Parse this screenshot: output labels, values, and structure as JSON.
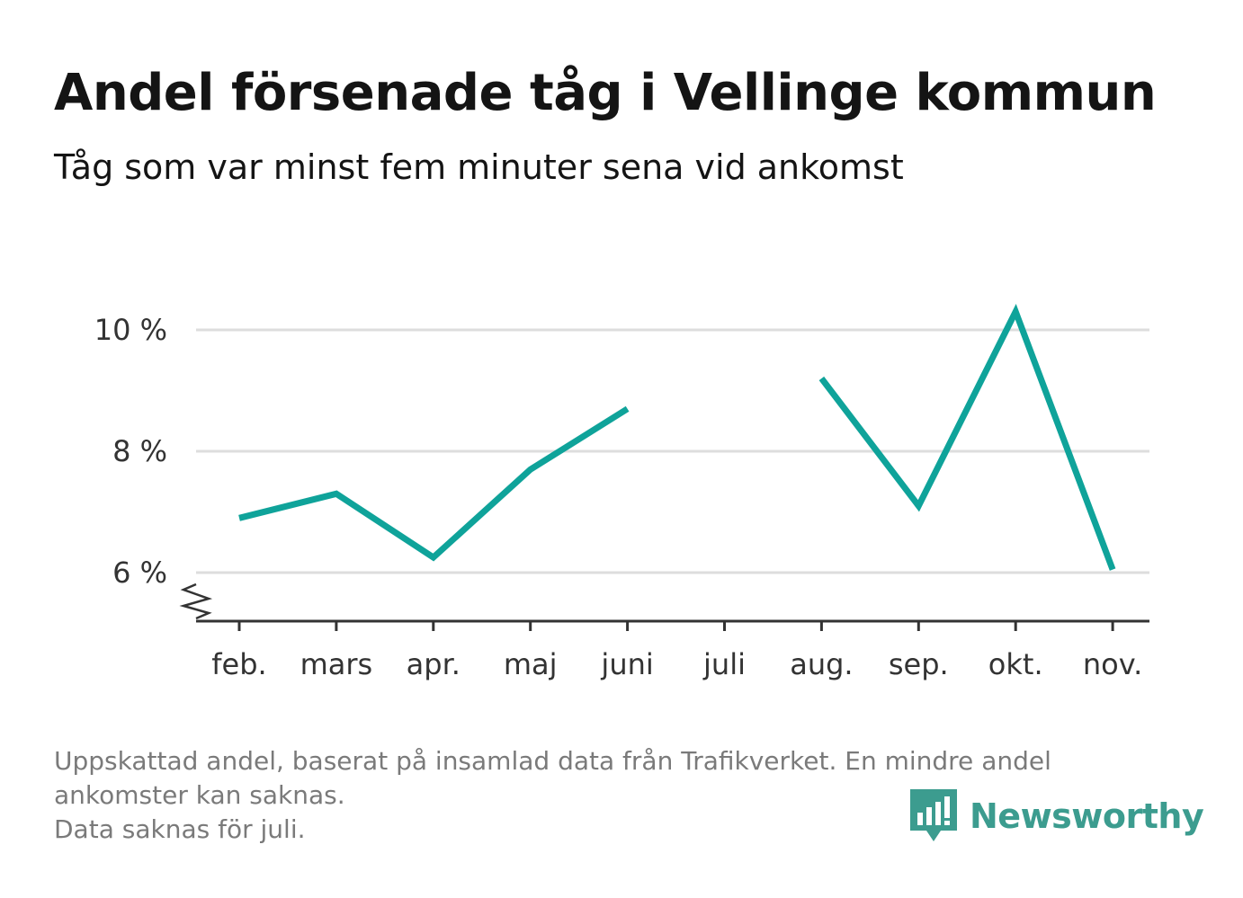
{
  "header": {
    "title": "Andel försenade tåg i Vellinge kommun",
    "subtitle": "Tåg som var minst fem minuter sena vid ankomst"
  },
  "footnote": {
    "line1": "Uppskattad andel, baserat på insamlad data från Trafikverket. En mindre andel",
    "line2": "ankomster kan saknas.",
    "line3": "Data saknas för juli."
  },
  "brand": {
    "name": "Newsworthy",
    "icon": "newsworthy-logo-icon",
    "color": "#3c9c8f"
  },
  "colors": {
    "line": "#0fa39a",
    "grid": "#dddddd",
    "axis": "#333333"
  },
  "chart_data": {
    "type": "line",
    "title": "Andel försenade tåg i Vellinge kommun",
    "subtitle": "Tåg som var minst fem minuter sena vid ankomst",
    "categories": [
      "feb.",
      "mars",
      "apr.",
      "maj",
      "juni",
      "juli",
      "aug.",
      "sep.",
      "okt.",
      "nov."
    ],
    "series": [
      {
        "values": [
          6.9,
          7.3,
          6.25,
          7.7,
          8.7,
          null,
          9.2,
          7.1,
          10.3,
          6.05
        ]
      }
    ],
    "y_ticks": [
      {
        "value": 6,
        "label": "6 %"
      },
      {
        "value": 8,
        "label": "8 %"
      },
      {
        "value": 10,
        "label": "10 %"
      }
    ],
    "ylim": [
      5.2,
      10.6
    ],
    "y_axis_break": true,
    "xlabel": "",
    "ylabel": "",
    "grid": true,
    "legend": "none"
  }
}
